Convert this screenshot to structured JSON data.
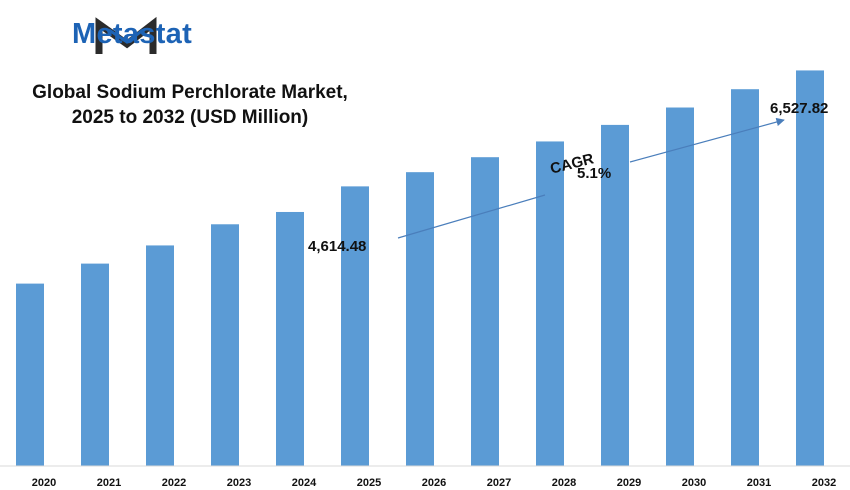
{
  "brand": {
    "name": "Metastat"
  },
  "chart_data": {
    "type": "bar",
    "title_lines": [
      "Global Sodium Perchlorate Market,",
      "2025 to 2032 (USD Million)"
    ],
    "categories": [
      "2020",
      "2021",
      "2022",
      "2023",
      "2024",
      "2025",
      "2026",
      "2027",
      "2028",
      "2029",
      "2030",
      "2031",
      "2032"
    ],
    "values": [
      3010,
      3340,
      3640,
      3989,
      4192,
      4614.48,
      4849,
      5096,
      5356,
      5629,
      5916,
      6218,
      6527.82
    ],
    "ylim": [
      0,
      6700
    ],
    "grid": false,
    "legend": "none",
    "bar_color": "#5b9bd5",
    "annotations": [
      {
        "category": "2025",
        "text": "4,614.48"
      },
      {
        "category": "2032",
        "text": "6,527.82"
      }
    ],
    "cagr": {
      "label": "CAGR",
      "value": "5.1%"
    }
  },
  "colors": {
    "brand": "#1d63b5",
    "logo_dark": "#2b2b2b",
    "arrow": "#4a7ebb"
  }
}
